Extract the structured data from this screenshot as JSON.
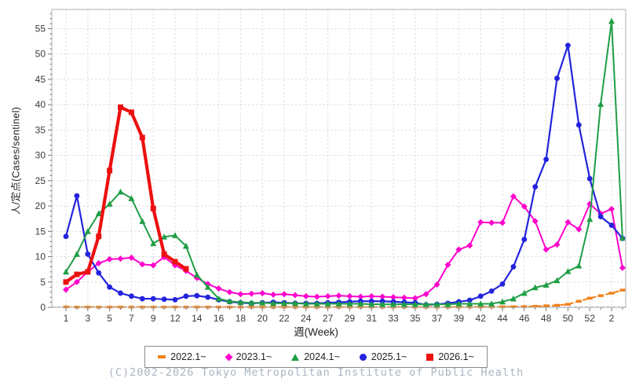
{
  "footer": {
    "copyright": "(C)2002-2026 Tokyo Metropolitan Institute of Public Health"
  },
  "chart_data": {
    "type": "line",
    "title": "",
    "xlabel": "週(Week)",
    "ylabel": "人/定点(Cases/sentinel)",
    "x_axis_note": "weekly points; ticks every 2 weeks, label sequence as printed on axis",
    "x_tick_labels": [
      "1",
      "3",
      "5",
      "7",
      "9",
      "12",
      "14",
      "16",
      "18",
      "20",
      "22",
      "24",
      "27",
      "29",
      "31",
      "33",
      "35",
      "37",
      "39",
      "42",
      "44",
      "46",
      "48",
      "50",
      "52",
      "2"
    ],
    "yticks": [
      0,
      5,
      10,
      15,
      20,
      25,
      30,
      35,
      40,
      45,
      50,
      55
    ],
    "ylim": [
      0,
      58.8
    ],
    "grid": true,
    "legend_position": "bottom",
    "colors": {
      "grid": "#dcdcdc",
      "plot_border": "#b0b0b0",
      "tick_text": "#3a3a3a",
      "zero_line": "#9aa8dd",
      "footer_text": "#a9b4c0"
    },
    "series": [
      {
        "name": "2022.1~",
        "color": "#f08019",
        "marker": "dash",
        "line_style": "dashed",
        "line_width": 2,
        "values": [
          0.08,
          0.05,
          0.05,
          0.05,
          0.05,
          0.05,
          0.05,
          0.05,
          0.05,
          0.05,
          0.05,
          0.05,
          0.05,
          0.05,
          0.05,
          0.05,
          0.05,
          0.05,
          0.05,
          0.05,
          0.05,
          0.05,
          0.05,
          0.05,
          0.05,
          0.05,
          0.05,
          0.05,
          0.05,
          0.05,
          0.05,
          0.05,
          0.05,
          0.05,
          0.05,
          0.06,
          0.06,
          0.08,
          0.08,
          0.1,
          0.1,
          0.12,
          0.15,
          0.2,
          0.3,
          0.4,
          0.6,
          1.2,
          1.8,
          2.3,
          2.8,
          3.4
        ]
      },
      {
        "name": "2023.1~",
        "color": "#ff00cc",
        "marker": "diamond",
        "line_style": "solid",
        "line_width": 2,
        "values": [
          3.5,
          5,
          7,
          8.7,
          9.5,
          9.6,
          9.8,
          8.5,
          8.3,
          9.9,
          8.3,
          7.2,
          5.8,
          4.6,
          3.7,
          3,
          2.6,
          2.7,
          2.8,
          2.5,
          2.6,
          2.4,
          2.2,
          2.1,
          2.2,
          2.3,
          2.2,
          2.1,
          2.2,
          2.1,
          2,
          1.9,
          1.8,
          2.6,
          4.5,
          8.4,
          11.4,
          12.2,
          16.8,
          16.7,
          16.7,
          21.9,
          19.9,
          17,
          11.4,
          12.4,
          16.8,
          15.4,
          20.4,
          18.5,
          19.4,
          7.8
        ]
      },
      {
        "name": "2024.1~",
        "color": "#1f9e45",
        "marker": "triangle",
        "line_style": "solid",
        "line_width": 2,
        "values": [
          7,
          10.5,
          15,
          18.5,
          20.4,
          22.8,
          21.5,
          17,
          12.6,
          13.9,
          14.2,
          12.1,
          6.4,
          4,
          1.7,
          1.2,
          1,
          0.9,
          0.9,
          0.8,
          0.8,
          0.8,
          0.7,
          0.7,
          0.7,
          0.7,
          0.7,
          0.7,
          0.6,
          0.6,
          0.6,
          0.6,
          0.6,
          0.6,
          0.6,
          0.6,
          0.7,
          0.7,
          0.7,
          0.7,
          1.1,
          1.7,
          2.8,
          3.9,
          4.4,
          5.3,
          7.1,
          8.2,
          17.4,
          40.1,
          56.5,
          13.7
        ]
      },
      {
        "name": "2025.1~",
        "color": "#2323dd",
        "marker": "circle",
        "line_style": "solid",
        "line_width": 2.2,
        "values": [
          14,
          22,
          10.5,
          6.8,
          4,
          2.8,
          2.2,
          1.7,
          1.7,
          1.6,
          1.5,
          2.2,
          2.3,
          2,
          1.5,
          1.1,
          0.9,
          0.8,
          0.9,
          1,
          0.9,
          0.8,
          0.8,
          0.8,
          0.9,
          1,
          1.1,
          1.2,
          1.2,
          1.2,
          1.1,
          1,
          0.9,
          0.5,
          0.6,
          0.8,
          1.1,
          1.4,
          2.2,
          3.2,
          4.6,
          8,
          13.4,
          23.8,
          29.2,
          45.2,
          51.7,
          36,
          25.4,
          17.9,
          16.2,
          13.6
        ]
      },
      {
        "name": "2026.1~",
        "color": "#ec1010",
        "marker": "square",
        "line_style": "solid",
        "line_width": 4.2,
        "values": [
          5,
          6.5,
          7,
          14,
          27,
          39.5,
          38.5,
          33.5,
          19.5,
          10.5,
          9,
          7.6
        ]
      }
    ]
  }
}
